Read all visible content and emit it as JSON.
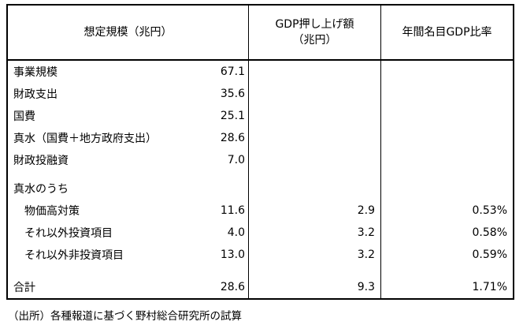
{
  "colors": {
    "background": "#ffffff",
    "border": "#000000",
    "text": "#000000"
  },
  "table": {
    "headers": {
      "col1": "想定規模（兆円）",
      "col2": "GDP押し上げ額\n（兆円）",
      "col3": "年間名目GDP比率"
    },
    "rows": [
      {
        "label": "事業規模",
        "scale": "67.1",
        "gdp_boost": "",
        "gdp_ratio": ""
      },
      {
        "label": "財政支出",
        "scale": "35.6",
        "gdp_boost": "",
        "gdp_ratio": ""
      },
      {
        "label": "国費",
        "scale": "25.1",
        "gdp_boost": "",
        "gdp_ratio": ""
      },
      {
        "label": "真水（国費＋地方政府支出）",
        "scale": "28.6",
        "gdp_boost": "",
        "gdp_ratio": ""
      },
      {
        "label": "財政投融資",
        "scale": "7.0",
        "gdp_boost": "",
        "gdp_ratio": ""
      },
      {
        "label": "真水のうち",
        "scale": "",
        "gdp_boost": "",
        "gdp_ratio": ""
      },
      {
        "label": "物価高対策",
        "scale": "11.6",
        "gdp_boost": "2.9",
        "gdp_ratio": "0.53%"
      },
      {
        "label": "それ以外投資項目",
        "scale": "4.0",
        "gdp_boost": "3.2",
        "gdp_ratio": "0.58%"
      },
      {
        "label": "それ以外非投資項目",
        "scale": "13.0",
        "gdp_boost": "3.2",
        "gdp_ratio": "0.59%"
      },
      {
        "label": "合計",
        "scale": "28.6",
        "gdp_boost": "9.3",
        "gdp_ratio": "1.71%"
      }
    ]
  },
  "footer": {
    "source": "（出所）各種報道に基づく野村総合研究所の試算"
  }
}
